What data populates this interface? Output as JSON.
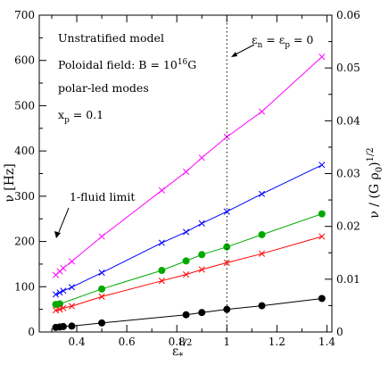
{
  "chart_data": {
    "type": "line",
    "xlabel": "ε",
    "xlabel_sub": "*",
    "xlabel_sup": "1/2",
    "ylabel": "ν [Hz]",
    "ylabel_right": "ν / (G ρ",
    "ylabel_right_sub": "0",
    "ylabel_right_close": ")",
    "ylabel_right_sup": "1/2",
    "xlim": [
      0.25,
      1.42
    ],
    "ylim": [
      0,
      700
    ],
    "ylim_right": [
      0,
      0.06
    ],
    "xticks": [
      0.4,
      0.6,
      0.8,
      1.0,
      1.2,
      1.4
    ],
    "xtick_labels": [
      "0.4",
      "0.6",
      "0.8",
      "1",
      "1.2",
      "1.4"
    ],
    "yticks": [
      0,
      100,
      200,
      300,
      400,
      500,
      600,
      700
    ],
    "ytick_labels": [
      "0",
      "100",
      "200",
      "300",
      "400",
      "500",
      "600",
      "700"
    ],
    "yticks_right": [
      0,
      0.01,
      0.02,
      0.03,
      0.04,
      0.05,
      0.06
    ],
    "ytick_labels_right": [
      "0",
      "0.01",
      "0.02",
      "0.03",
      "0.04",
      "0.05",
      "0.06"
    ],
    "grid": false,
    "vline": {
      "x": 1.0,
      "style": "dotted",
      "label_main": "ε",
      "label_sub1": "n",
      "label_mid": " = ε",
      "label_sub2": "p",
      "label_end": " = 0"
    },
    "annotations": {
      "model": "Unstratified model",
      "field_prefix": "Poloidal field:  B = 10",
      "field_exp": "16",
      "field_unit": "G",
      "modes": "polar-led modes",
      "xp_main": "x",
      "xp_sub": "p",
      "xp_val": " = 0.1",
      "fluid_limit": "1-fluid limit"
    },
    "series": [
      {
        "color": "#ff00ff",
        "marker": "x",
        "x": [
          0.316,
          0.332,
          0.346,
          0.38,
          0.5,
          0.74,
          0.837,
          0.9,
          1.0,
          1.14,
          1.38
        ],
        "y": [
          126,
          134,
          141,
          156,
          211,
          313,
          354,
          385,
          431,
          487,
          608
        ]
      },
      {
        "color": "#0000ff",
        "marker": "x",
        "x": [
          0.316,
          0.332,
          0.346,
          0.38,
          0.5,
          0.74,
          0.837,
          0.9,
          1.0,
          1.14,
          1.38
        ],
        "y": [
          83,
          87,
          91,
          99,
          131,
          197,
          221,
          240,
          266,
          305,
          369
        ]
      },
      {
        "color": "#00aa00",
        "marker": "circle",
        "x": [
          0.316,
          0.332,
          0.5,
          0.74,
          0.837,
          0.9,
          1.0,
          1.14,
          1.38
        ],
        "y": [
          61,
          62,
          95,
          136,
          157,
          171,
          188,
          215,
          261
        ]
      },
      {
        "color": "#ff0000",
        "marker": "x",
        "x": [
          0.316,
          0.332,
          0.346,
          0.38,
          0.5,
          0.74,
          0.837,
          0.9,
          1.0,
          1.14,
          1.38
        ],
        "y": [
          48,
          50,
          53,
          57,
          78,
          113,
          127,
          138,
          153,
          173,
          211
        ]
      },
      {
        "color": "#000000",
        "marker": "circle",
        "x": [
          0.316,
          0.332,
          0.346,
          0.38,
          0.5,
          0.837,
          0.9,
          1.0,
          1.14,
          1.38
        ],
        "y": [
          10,
          11,
          12,
          13,
          20,
          38,
          43,
          50,
          58,
          74
        ]
      }
    ]
  }
}
